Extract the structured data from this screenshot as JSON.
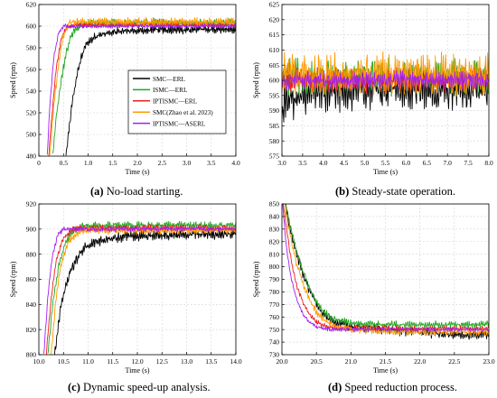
{
  "colors": {
    "SMC_ERL": "#000000",
    "ISMC_ERL": "#1fa61f",
    "IPTISMC_ERL": "#ee1c1c",
    "SMC_Zhao": "#ff9a00",
    "IPTISMC_ASERL": "#a020f0"
  },
  "chart_data": [
    {
      "id": "a",
      "type": "line",
      "caption_label": "(a)",
      "caption_text": "No-load starting.",
      "xlabel": "Time (s)",
      "ylabel": "Speed (rpm)",
      "xlim": [
        0,
        4
      ],
      "ylim": [
        480,
        620
      ],
      "xticks": [
        "0",
        "0.5",
        "1.0",
        "1.5",
        "2.0",
        "2.5",
        "3.0",
        "3.5",
        "4.0"
      ],
      "xtick_values": [
        0,
        0.5,
        1,
        1.5,
        2,
        2.5,
        3,
        3.5,
        4
      ],
      "yticks": [
        "480",
        "500",
        "520",
        "540",
        "560",
        "580",
        "600",
        "620"
      ],
      "ytick_values": [
        480,
        500,
        520,
        540,
        560,
        580,
        600,
        620
      ],
      "legend": {
        "position": "center-right",
        "entries": [
          "SMC—ERL",
          "ISMC—ERL",
          "IPTISMC—ERL",
          "SMC(Zhao et al. 2023)",
          "IPTISMC—ASERL"
        ]
      },
      "series": [
        {
          "name": "SMC—ERL",
          "color_key": "SMC_ERL",
          "x": [
            0.55,
            0.65,
            0.75,
            0.85,
            0.95,
            1.1,
            1.3,
            1.6,
            2.0,
            2.5,
            3.0,
            3.5,
            4.0
          ],
          "y": [
            480,
            520,
            550,
            570,
            582,
            589,
            593,
            595,
            596,
            597,
            597,
            597,
            597
          ]
        },
        {
          "name": "ISMC—ERL",
          "color_key": "ISMC_ERL",
          "x": [
            0.28,
            0.35,
            0.45,
            0.55,
            0.65,
            0.75,
            0.85,
            1.0,
            1.5,
            2.0,
            2.5,
            3.0,
            3.5,
            4.0
          ],
          "y": [
            480,
            515,
            550,
            575,
            590,
            597,
            601,
            603,
            603,
            603,
            603,
            603,
            603,
            603
          ]
        },
        {
          "name": "IPTISMC—ERL",
          "color_key": "IPTISMC_ERL",
          "x": [
            0.2,
            0.27,
            0.35,
            0.45,
            0.55,
            0.65,
            0.8,
            1.2,
            2.0,
            3.0,
            4.0
          ],
          "y": [
            480,
            520,
            560,
            588,
            598,
            601,
            601,
            601,
            601,
            601,
            601
          ]
        },
        {
          "name": "SMC(Zhao et al. 2023)",
          "color_key": "SMC_Zhao",
          "x": [
            0.22,
            0.3,
            0.4,
            0.5,
            0.6,
            0.7,
            1.0,
            1.5,
            2.0,
            3.0,
            4.0
          ],
          "y": [
            480,
            525,
            565,
            592,
            602,
            604,
            604,
            604,
            604,
            604,
            604
          ]
        },
        {
          "name": "IPTISMC—ASERL",
          "color_key": "IPTISMC_ASERL",
          "x": [
            0.17,
            0.22,
            0.3,
            0.4,
            0.5,
            0.6,
            1.0,
            2.0,
            3.0,
            4.0
          ],
          "y": [
            480,
            525,
            570,
            594,
            600,
            600,
            600,
            600,
            600,
            600
          ]
        }
      ]
    },
    {
      "id": "b",
      "type": "line",
      "caption_label": "(b)",
      "caption_text": "Steady-state operation.",
      "xlabel": "Time (s)",
      "ylabel": "Speed (rpm)",
      "xlim": [
        3,
        8
      ],
      "ylim": [
        575,
        625
      ],
      "xticks": [
        "3.0",
        "3.5",
        "4.0",
        "4.5",
        "5.0",
        "5.5",
        "6.0",
        "6.5",
        "7.0",
        "7.5",
        "8.0"
      ],
      "xtick_values": [
        3,
        3.5,
        4,
        4.5,
        5,
        5.5,
        6,
        6.5,
        7,
        7.5,
        8
      ],
      "yticks": [
        "575",
        "580",
        "585",
        "590",
        "595",
        "600",
        "605",
        "610",
        "615",
        "620",
        "625"
      ],
      "ytick_values": [
        575,
        580,
        585,
        590,
        595,
        600,
        605,
        610,
        615,
        620,
        625
      ],
      "series": [
        {
          "name": "SMC—ERL",
          "color_key": "SMC_ERL",
          "x": [
            3.0,
            3.2,
            3.5,
            4.0,
            5.0,
            6.0,
            7.0,
            8.0
          ],
          "y": [
            591,
            594,
            596,
            597,
            597,
            597,
            597,
            597
          ]
        },
        {
          "name": "ISMC—ERL",
          "color_key": "ISMC_ERL",
          "x": [
            3.0,
            8.0
          ],
          "y": [
            601,
            601
          ]
        },
        {
          "name": "IPTISMC—ERL",
          "color_key": "IPTISMC_ERL",
          "x": [
            3.0,
            8.0
          ],
          "y": [
            600,
            600
          ]
        },
        {
          "name": "SMC(Zhao et al. 2023)",
          "color_key": "SMC_Zhao",
          "x": [
            3.0,
            8.0
          ],
          "y": [
            602,
            602
          ]
        },
        {
          "name": "IPTISMC—ASERL",
          "color_key": "IPTISMC_ASERL",
          "x": [
            3.0,
            8.0
          ],
          "y": [
            600,
            600
          ]
        }
      ]
    },
    {
      "id": "c",
      "type": "line",
      "caption_label": "(c)",
      "caption_text": "Dynamic speed-up analysis.",
      "xlabel": "Time (s)",
      "ylabel": "Speed (rpm)",
      "xlim": [
        10,
        14
      ],
      "ylim": [
        800,
        920
      ],
      "xticks": [
        "10.0",
        "10.5",
        "11.0",
        "11.5",
        "12.0",
        "12.5",
        "13.0",
        "13.5",
        "14.0"
      ],
      "xtick_values": [
        10,
        10.5,
        11,
        11.5,
        12,
        12.5,
        13,
        13.5,
        14
      ],
      "yticks": [
        "800",
        "820",
        "840",
        "860",
        "880",
        "900",
        "920"
      ],
      "ytick_values": [
        800,
        820,
        840,
        860,
        880,
        900,
        920
      ],
      "series": [
        {
          "name": "SMC—ERL",
          "color_key": "SMC_ERL",
          "x": [
            10.32,
            10.45,
            10.6,
            10.75,
            10.9,
            11.1,
            11.4,
            11.8,
            12.3,
            13.0,
            14.0
          ],
          "y": [
            800,
            840,
            862,
            875,
            884,
            889,
            892,
            894,
            895,
            896,
            896
          ]
        },
        {
          "name": "ISMC—ERL",
          "color_key": "ISMC_ERL",
          "x": [
            10.18,
            10.28,
            10.4,
            10.55,
            10.7,
            10.85,
            11.0,
            11.5,
            12.0,
            13.0,
            14.0
          ],
          "y": [
            800,
            840,
            870,
            890,
            898,
            902,
            903,
            903,
            903,
            903,
            903
          ]
        },
        {
          "name": "IPTISMC—ERL",
          "color_key": "IPTISMC_ERL",
          "x": [
            10.15,
            10.25,
            10.35,
            10.5,
            10.65,
            10.8,
            11.2,
            12.0,
            13.0,
            14.0
          ],
          "y": [
            800,
            845,
            875,
            893,
            899,
            901,
            901,
            901,
            901,
            901
          ]
        },
        {
          "name": "SMC(Zhao et al. 2023)",
          "color_key": "SMC_Zhao",
          "x": [
            10.25,
            10.35,
            10.45,
            10.6,
            10.8,
            11.0,
            11.5,
            12.0,
            13.0,
            14.0
          ],
          "y": [
            800,
            845,
            872,
            890,
            897,
            899,
            899,
            899,
            899,
            899
          ]
        },
        {
          "name": "IPTISMC—ASERL",
          "color_key": "IPTISMC_ASERL",
          "x": [
            10.1,
            10.18,
            10.27,
            10.38,
            10.5,
            10.65,
            11.0,
            12.0,
            13.0,
            14.0
          ],
          "y": [
            800,
            845,
            878,
            895,
            900,
            900,
            900,
            900,
            900,
            900
          ]
        }
      ]
    },
    {
      "id": "d",
      "type": "line",
      "caption_label": "(d)",
      "caption_text": "Speed reduction process.",
      "xlabel": "Time (s)",
      "ylabel": "Speed (rpm)",
      "xlim": [
        20,
        23
      ],
      "ylim": [
        730,
        850
      ],
      "xticks": [
        "20.0",
        "20.5",
        "21.0",
        "21.5",
        "22.0",
        "22.5",
        "23.0"
      ],
      "xtick_values": [
        20,
        20.5,
        21,
        21.5,
        22,
        22.5,
        23
      ],
      "yticks": [
        "730",
        "740",
        "750",
        "760",
        "770",
        "780",
        "790",
        "800",
        "810",
        "820",
        "830",
        "840",
        "850"
      ],
      "ytick_values": [
        730,
        740,
        750,
        760,
        770,
        780,
        790,
        800,
        810,
        820,
        830,
        840,
        850
      ],
      "series": [
        {
          "name": "SMC—ERL",
          "color_key": "SMC_ERL",
          "x": [
            20.05,
            20.1,
            20.2,
            20.3,
            20.4,
            20.5,
            20.6,
            20.75,
            21.0,
            21.5,
            22.0,
            22.5,
            23.0
          ],
          "y": [
            850,
            835,
            812,
            795,
            782,
            770,
            762,
            756,
            752,
            750,
            748,
            746,
            746
          ]
        },
        {
          "name": "ISMC—ERL",
          "color_key": "ISMC_ERL",
          "x": [
            20.05,
            20.1,
            20.2,
            20.3,
            20.4,
            20.5,
            20.6,
            20.75,
            21.0,
            21.5,
            22.0,
            22.5,
            23.0
          ],
          "y": [
            850,
            838,
            815,
            797,
            783,
            772,
            764,
            758,
            755,
            754,
            754,
            754,
            754
          ]
        },
        {
          "name": "IPTISMC—ERL",
          "color_key": "IPTISMC_ERL",
          "x": [
            20.02,
            20.08,
            20.15,
            20.22,
            20.3,
            20.4,
            20.5,
            20.6,
            20.8,
            21.2,
            22.0,
            23.0
          ],
          "y": [
            850,
            825,
            800,
            784,
            772,
            762,
            756,
            753,
            751,
            751,
            751,
            751
          ]
        },
        {
          "name": "SMC(Zhao et al. 2023)",
          "color_key": "SMC_Zhao",
          "x": [
            20.04,
            20.1,
            20.2,
            20.3,
            20.4,
            20.5,
            20.6,
            20.8,
            21.0,
            21.5,
            22.0,
            23.0
          ],
          "y": [
            850,
            830,
            805,
            787,
            774,
            764,
            758,
            752,
            750,
            749,
            748,
            748
          ]
        },
        {
          "name": "IPTISMC—ASERL",
          "color_key": "IPTISMC_ASERL",
          "x": [
            20.01,
            20.06,
            20.12,
            20.18,
            20.25,
            20.32,
            20.4,
            20.5,
            20.7,
            21.0,
            22.0,
            23.0
          ],
          "y": [
            850,
            818,
            795,
            780,
            769,
            761,
            756,
            752,
            750,
            750,
            750,
            750
          ]
        }
      ]
    }
  ]
}
